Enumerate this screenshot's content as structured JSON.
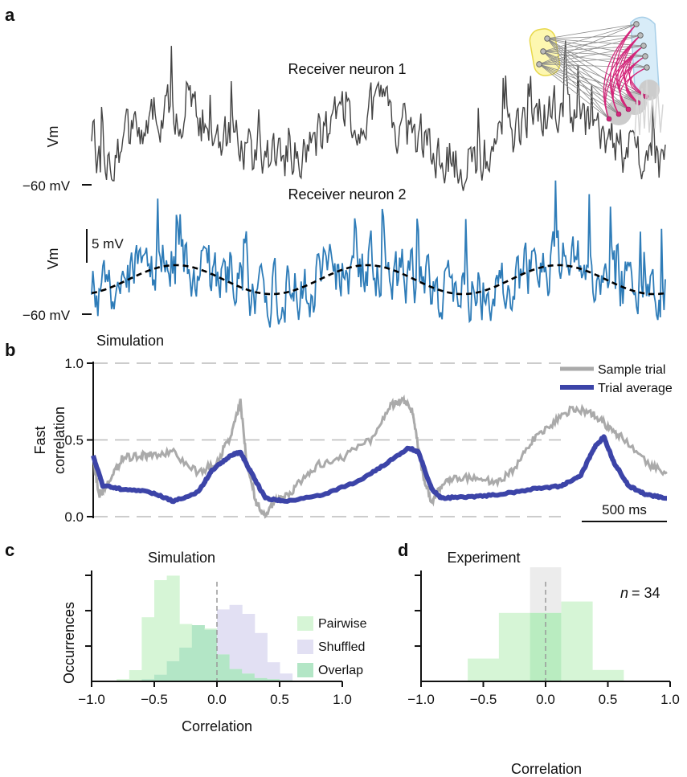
{
  "panels": {
    "a": {
      "label": "a",
      "trace1_title": "Receiver neuron 1",
      "trace2_title": "Receiver neuron 2",
      "ylabel": "Vm",
      "baseline_label": "−60 mV",
      "scalebar_label": "5 mV",
      "colors": {
        "trace1": "#444444",
        "trace2": "#2e7cb8",
        "mean": "#000000"
      }
    },
    "b": {
      "label": "b",
      "title": "Simulation",
      "ylabel_line1": "Fast",
      "ylabel_line2": "correlation",
      "yticks": [
        "0.0",
        "0.5",
        "1.0"
      ],
      "legend": [
        "Sample trial",
        "Trial average"
      ],
      "scalebar_label": "500 ms",
      "colors": {
        "sample": "#aaaaaa",
        "average": "#3c44a8"
      }
    },
    "c": {
      "label": "c",
      "title": "Simulation",
      "xlabel": "Correlation",
      "ylabel": "Occurrences",
      "xticks": [
        "−1.0",
        "−0.5",
        "0.0",
        "0.5",
        "1.0"
      ],
      "legend": [
        "Pairwise",
        "Shuffled",
        "Overlap"
      ],
      "colors": {
        "pairwise": "#d6f5d6",
        "shuffled": "#e2e0f3",
        "overlap": "#b3e6c6"
      }
    },
    "d": {
      "label": "d",
      "title": "Experiment",
      "n_label": "n",
      "n_value": "= 34",
      "xlabel": "Correlation",
      "xticks": [
        "−1.0",
        "−0.5",
        "0.0",
        "0.5",
        "1.0"
      ],
      "colors": {
        "data": "#d6f5d6",
        "overlap": "#b9ecc0",
        "shuffled": "#ececec"
      }
    }
  },
  "chart_data": [
    {
      "type": "line",
      "panel": "b",
      "title": "Simulation",
      "ylabel": "Fast correlation",
      "ylim": [
        0,
        1
      ],
      "yticks": [
        0,
        0.5,
        1.0
      ],
      "grid": "dashed at 0, 0.5, 1.0",
      "legend_position": "top-right",
      "time_scale_ms": 500,
      "series": [
        {
          "name": "Sample trial",
          "x": [
            0,
            0.03,
            0.08,
            0.15,
            0.25,
            0.3,
            0.42,
            0.55,
            0.65,
            0.72,
            0.77,
            0.8,
            0.85,
            0.9,
            0.96,
            1.0,
            1.08,
            1.18,
            1.3,
            1.45,
            1.55,
            1.62,
            1.67,
            1.7,
            1.72,
            1.77,
            1.82,
            1.88,
            2.0,
            2.1,
            2.2,
            2.3,
            2.4,
            2.5,
            2.6,
            2.68,
            2.76,
            2.9,
            3.0
          ],
          "y": [
            0.38,
            0.14,
            0.22,
            0.38,
            0.4,
            0.4,
            0.42,
            0.28,
            0.36,
            0.53,
            0.75,
            0.38,
            0.1,
            0.0,
            0.12,
            0.12,
            0.22,
            0.34,
            0.38,
            0.5,
            0.72,
            0.76,
            0.68,
            0.45,
            0.3,
            0.08,
            0.2,
            0.24,
            0.26,
            0.22,
            0.3,
            0.5,
            0.6,
            0.7,
            0.68,
            0.6,
            0.52,
            0.34,
            0.29
          ]
        },
        {
          "name": "Trial average",
          "x": [
            0,
            0.05,
            0.15,
            0.3,
            0.42,
            0.55,
            0.62,
            0.72,
            0.77,
            0.82,
            0.9,
            1.0,
            1.2,
            1.4,
            1.55,
            1.65,
            1.7,
            1.77,
            1.82,
            1.95,
            2.1,
            2.3,
            2.45,
            2.55,
            2.62,
            2.67,
            2.72,
            2.8,
            2.9,
            3.0
          ],
          "y": [
            0.4,
            0.2,
            0.18,
            0.16,
            0.1,
            0.16,
            0.3,
            0.4,
            0.42,
            0.3,
            0.12,
            0.1,
            0.14,
            0.24,
            0.36,
            0.45,
            0.42,
            0.18,
            0.12,
            0.13,
            0.14,
            0.18,
            0.2,
            0.27,
            0.45,
            0.52,
            0.36,
            0.2,
            0.14,
            0.12
          ]
        }
      ]
    },
    {
      "type": "bar",
      "panel": "c",
      "title": "Simulation",
      "xlabel": "Correlation",
      "ylabel": "Occurrences",
      "xlim": [
        -1,
        1
      ],
      "ylim": [
        0,
        1
      ],
      "xticks": [
        -1,
        -0.5,
        0,
        0.5,
        1
      ],
      "legend_position": "right",
      "bin_edges": [
        -0.8,
        -0.7,
        -0.6,
        -0.5,
        -0.4,
        -0.3,
        -0.2,
        -0.1,
        0.0,
        0.1,
        0.2,
        0.3,
        0.4,
        0.5,
        0.6
      ],
      "series": [
        {
          "name": "Pairwise",
          "values": [
            0.02,
            0.1,
            0.57,
            0.9,
            0.94,
            0.51,
            0.5,
            0.47,
            0.24,
            0.11,
            0.07,
            0.03,
            0.02,
            0.01
          ]
        },
        {
          "name": "Shuffled",
          "values": [
            0.0,
            0.0,
            0.02,
            0.06,
            0.18,
            0.3,
            0.5,
            0.46,
            0.64,
            0.68,
            0.6,
            0.43,
            0.17,
            0.07
          ]
        }
      ],
      "overlap_label": "Overlap"
    },
    {
      "type": "bar",
      "panel": "d",
      "title": "Experiment",
      "xlabel": "Correlation",
      "xlim": [
        -1,
        1
      ],
      "ylim": [
        0,
        1
      ],
      "xticks": [
        -1,
        -0.5,
        0,
        0.5,
        1
      ],
      "annotation": "n = 34",
      "bin_edges": [
        -0.625,
        -0.375,
        -0.125,
        0.125,
        0.375,
        0.625
      ],
      "series": [
        {
          "name": "Experiment",
          "values": [
            0.2,
            0.6,
            0.6,
            0.7,
            0.1
          ]
        },
        {
          "name": "Shuffled",
          "values": [
            0.0,
            0.0,
            1.0,
            0.0,
            0.0
          ]
        }
      ]
    }
  ]
}
